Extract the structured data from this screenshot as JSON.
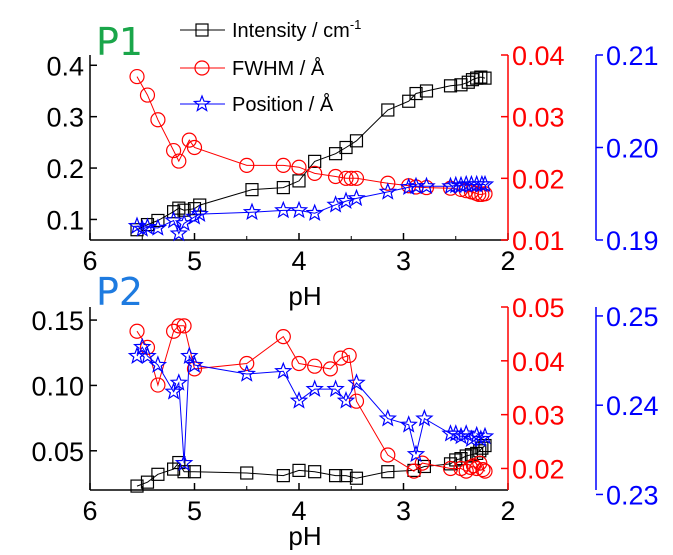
{
  "chart_data": [
    {
      "type": "scatter",
      "panel_label": "P1",
      "panel_label_color": "#1aa64a",
      "xlabel": "pH",
      "xlim": [
        6,
        2
      ],
      "xticks": [
        "6",
        "5",
        "4",
        "3",
        "2"
      ],
      "xtick_values": [
        6,
        5,
        4,
        3,
        2
      ],
      "legend_placement": "top-center",
      "axes": {
        "left": {
          "ylim": [
            0.06,
            0.42
          ],
          "ticks": [
            0.1,
            0.2,
            0.3,
            0.4
          ],
          "tick_labels": [
            "0.1",
            "0.2",
            "0.3",
            "0.4"
          ],
          "color": "#000000"
        },
        "right1": {
          "ylim": [
            0.01,
            0.04
          ],
          "ticks": [
            0.01,
            0.02,
            0.03,
            0.04
          ],
          "tick_labels": [
            "0.01",
            "0.02",
            "0.03",
            "0.04"
          ],
          "color": "#ff0000"
        },
        "right2": {
          "ylim": [
            0.19,
            0.21
          ],
          "ticks": [
            0.19,
            0.2,
            0.21
          ],
          "tick_labels": [
            "0.19",
            "0.20",
            "0.21"
          ],
          "color": "#0000ff"
        }
      },
      "series": [
        {
          "name": "Intensity / cm",
          "name_superscript": "-1",
          "axis": "left",
          "marker": "square",
          "color": "#000000",
          "x": [
            5.55,
            5.45,
            5.35,
            5.2,
            5.15,
            5.1,
            5.0,
            4.95,
            4.45,
            4.15,
            4.0,
            3.85,
            3.65,
            3.55,
            3.45,
            3.15,
            2.95,
            2.88,
            2.78,
            2.55,
            2.45,
            2.38,
            2.34,
            2.3,
            2.26,
            2.22
          ],
          "y": [
            0.08,
            0.09,
            0.098,
            0.115,
            0.122,
            0.118,
            0.121,
            0.128,
            0.158,
            0.162,
            0.175,
            0.213,
            0.228,
            0.24,
            0.253,
            0.313,
            0.33,
            0.345,
            0.35,
            0.36,
            0.362,
            0.367,
            0.372,
            0.375,
            0.377,
            0.375
          ]
        },
        {
          "name": "FWHM / Å",
          "axis": "right1",
          "marker": "circle",
          "color": "#ff0000",
          "x": [
            5.55,
            5.45,
            5.35,
            5.2,
            5.15,
            5.05,
            5.0,
            4.5,
            4.15,
            4.0,
            3.85,
            3.65,
            3.55,
            3.5,
            3.45,
            3.15,
            2.95,
            2.88,
            2.78,
            2.55,
            2.45,
            2.4,
            2.35,
            2.31,
            2.28,
            2.25,
            2.22
          ],
          "y": [
            0.0365,
            0.0335,
            0.0295,
            0.0245,
            0.0228,
            0.0262,
            0.025,
            0.0221,
            0.0221,
            0.0218,
            0.0208,
            0.0203,
            0.02,
            0.02,
            0.02,
            0.0192,
            0.0188,
            0.0186,
            0.0185,
            0.0184,
            0.0182,
            0.018,
            0.0178,
            0.0176,
            0.0174,
            0.0174,
            0.0175
          ]
        },
        {
          "name": "Position / Å",
          "axis": "right2",
          "marker": "star",
          "color": "#0000ff",
          "x": [
            5.55,
            5.5,
            5.45,
            5.35,
            5.2,
            5.15,
            5.1,
            5.0,
            4.95,
            4.45,
            4.15,
            4.0,
            3.85,
            3.65,
            3.55,
            3.45,
            3.15,
            2.95,
            2.88,
            2.78,
            2.55,
            2.5,
            2.45,
            2.4,
            2.35,
            2.3,
            2.25,
            2.22
          ],
          "y": [
            0.1915,
            0.1912,
            0.1914,
            0.1913,
            0.1921,
            0.1907,
            0.1918,
            0.1925,
            0.1928,
            0.193,
            0.1932,
            0.1932,
            0.1929,
            0.1938,
            0.1942,
            0.1945,
            0.1952,
            0.1957,
            0.1958,
            0.1958,
            0.1958,
            0.1959,
            0.1959,
            0.196,
            0.196,
            0.196,
            0.196,
            0.196
          ]
        }
      ]
    },
    {
      "type": "scatter",
      "panel_label": "P2",
      "panel_label_color": "#1e7be0",
      "xlabel": "pH",
      "xlim": [
        6,
        2
      ],
      "xticks": [
        "6",
        "5",
        "4",
        "3",
        "2"
      ],
      "xtick_values": [
        6,
        5,
        4,
        3,
        2
      ],
      "axes": {
        "left": {
          "ylim": [
            0.02,
            0.16
          ],
          "ticks": [
            0.05,
            0.1,
            0.15
          ],
          "tick_labels": [
            "0.05",
            "0.10",
            "0.15"
          ],
          "color": "#000000"
        },
        "right1": {
          "ylim": [
            0.016,
            0.05
          ],
          "ticks": [
            0.02,
            0.03,
            0.04,
            0.05
          ],
          "tick_labels": [
            "0.02",
            "0.03",
            "0.04",
            "0.05"
          ],
          "color": "#ff0000"
        },
        "right2": {
          "ylim": [
            0.2305,
            0.251
          ],
          "ticks": [
            0.23,
            0.24,
            0.25
          ],
          "tick_labels": [
            "0.23",
            "0.24",
            "0.25"
          ],
          "color": "#0000ff"
        }
      },
      "series": [
        {
          "name": "Intensity / cm",
          "axis": "left",
          "marker": "square",
          "color": "#000000",
          "x": [
            5.55,
            5.45,
            5.35,
            5.2,
            5.15,
            5.1,
            5.0,
            4.5,
            4.15,
            4.0,
            3.85,
            3.65,
            3.55,
            3.45,
            3.15,
            2.9,
            2.8,
            2.55,
            2.5,
            2.45,
            2.4,
            2.35,
            2.3,
            2.27,
            2.25,
            2.22
          ],
          "y": [
            0.023,
            0.026,
            0.032,
            0.036,
            0.041,
            0.034,
            0.034,
            0.033,
            0.031,
            0.035,
            0.034,
            0.031,
            0.031,
            0.029,
            0.034,
            0.035,
            0.038,
            0.04,
            0.043,
            0.044,
            0.046,
            0.047,
            0.048,
            0.05,
            0.052,
            0.054
          ]
        },
        {
          "name": "FWHM / Å",
          "axis": "right1",
          "marker": "circle",
          "color": "#ff0000",
          "x": [
            5.55,
            5.45,
            5.35,
            5.2,
            5.15,
            5.1,
            5.0,
            4.5,
            4.15,
            4.0,
            3.85,
            3.7,
            3.6,
            3.52,
            3.45,
            3.15,
            2.9,
            2.82,
            2.55,
            2.45,
            2.4,
            2.36,
            2.33,
            2.3,
            2.27,
            2.24,
            2.22
          ],
          "y": [
            0.0455,
            0.0425,
            0.0355,
            0.0455,
            0.0465,
            0.0465,
            0.0385,
            0.0395,
            0.0445,
            0.0395,
            0.039,
            0.0385,
            0.0405,
            0.041,
            0.0325,
            0.0225,
            0.0195,
            0.021,
            0.02,
            0.02,
            0.0195,
            0.0202,
            0.0205,
            0.02,
            0.021,
            0.0198,
            0.0195
          ]
        },
        {
          "name": "Position / Å",
          "axis": "right2",
          "marker": "star",
          "color": "#0000ff",
          "x": [
            5.55,
            5.5,
            5.45,
            5.35,
            5.2,
            5.15,
            5.1,
            5.05,
            5.0,
            4.5,
            4.15,
            4.0,
            3.85,
            3.65,
            3.55,
            3.45,
            3.15,
            2.95,
            2.88,
            2.8,
            2.55,
            2.5,
            2.45,
            2.4,
            2.35,
            2.3,
            2.26,
            2.22
          ],
          "y": [
            0.2455,
            0.2465,
            0.2455,
            0.2445,
            0.2415,
            0.2425,
            0.2335,
            0.2455,
            0.2445,
            0.2435,
            0.2438,
            0.2405,
            0.2418,
            0.2418,
            0.2405,
            0.2425,
            0.2385,
            0.2378,
            0.2345,
            0.2385,
            0.2368,
            0.2368,
            0.2365,
            0.2368,
            0.2362,
            0.2366,
            0.2362,
            0.2365
          ]
        }
      ]
    }
  ]
}
